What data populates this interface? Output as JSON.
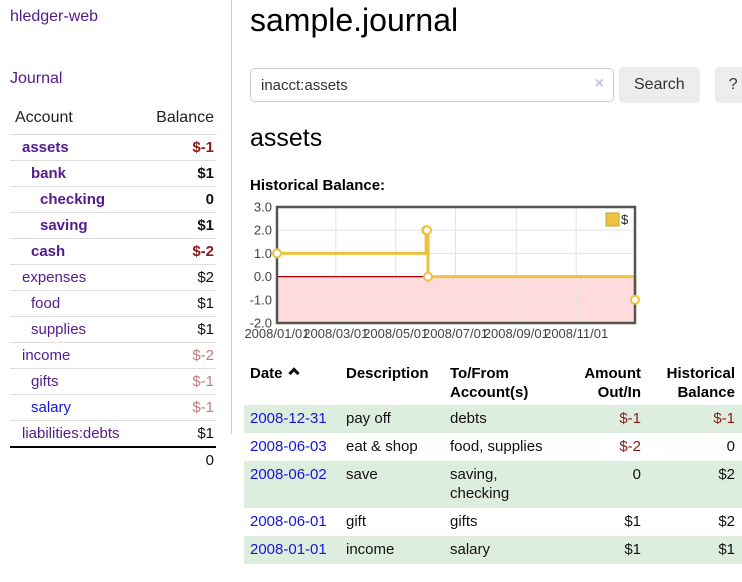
{
  "app": {
    "title": "hledger-web"
  },
  "sidebar": {
    "journal_link": "Journal",
    "accounts": {
      "headers": {
        "account": "Account",
        "balance": "Balance"
      },
      "rows": [
        {
          "name": "assets",
          "balance": "$-1",
          "level": 1,
          "in_query": true,
          "balance_tone": "negative-strong"
        },
        {
          "name": "bank",
          "balance": "$1",
          "level": 2,
          "in_query": true,
          "balance_tone": "normal"
        },
        {
          "name": "checking",
          "balance": "0",
          "level": 3,
          "in_query": true,
          "balance_tone": "normal"
        },
        {
          "name": "saving",
          "balance": "$1",
          "level": 3,
          "in_query": true,
          "balance_tone": "normal"
        },
        {
          "name": "cash",
          "balance": "$-2",
          "level": 2,
          "in_query": true,
          "balance_tone": "negative-strong"
        },
        {
          "name": "expenses",
          "balance": "$2",
          "level": 1,
          "in_query": false,
          "balance_tone": "normal"
        },
        {
          "name": "food",
          "balance": "$1",
          "level": 2,
          "in_query": false,
          "balance_tone": "normal"
        },
        {
          "name": "supplies",
          "balance": "$1",
          "level": 2,
          "in_query": false,
          "balance_tone": "normal"
        },
        {
          "name": "income",
          "balance": "$-2",
          "level": 1,
          "in_query": false,
          "balance_tone": "negative-soft"
        },
        {
          "name": "gifts",
          "balance": "$-1",
          "level": 2,
          "in_query": false,
          "balance_tone": "negative-soft"
        },
        {
          "name": "salary",
          "balance": "$-1",
          "level": 2,
          "in_query": false,
          "balance_tone": "negative-soft"
        },
        {
          "name": "liabilities:debts",
          "balance": "$1",
          "level": 1,
          "in_query": false,
          "balance_tone": "normal"
        }
      ],
      "total": "0"
    }
  },
  "main": {
    "title": "sample.journal",
    "search": {
      "value": "inacct:assets",
      "clear_icon": "×",
      "button_label": "Search",
      "help_label": "?"
    },
    "account_heading": "assets",
    "chart_label": "Historical Balance:"
  },
  "chart_data": {
    "type": "line",
    "step": true,
    "series": [
      {
        "name": "$",
        "color": "#edc240",
        "points": [
          [
            "2008-01-01",
            1
          ],
          [
            "2008-06-01",
            2
          ],
          [
            "2008-06-02",
            2
          ],
          [
            "2008-06-03",
            0
          ],
          [
            "2008-12-31",
            -1
          ]
        ]
      }
    ],
    "xrange": [
      "2008-01-01",
      "2008-12-31"
    ],
    "ylim": [
      -2,
      3
    ],
    "yticks": [
      {
        "value": 3,
        "label": "3.0"
      },
      {
        "value": 2,
        "label": "2.0"
      },
      {
        "value": 1,
        "label": "1.0"
      },
      {
        "value": 0,
        "label": "0.0"
      },
      {
        "value": -1,
        "label": "-1.0"
      },
      {
        "value": -2,
        "label": "-2.0"
      }
    ],
    "xticks": [
      {
        "date": "2008-01-01",
        "label": "2008/01/01"
      },
      {
        "date": "2008-03-01",
        "label": "2008/03/01"
      },
      {
        "date": "2008-05-01",
        "label": "2008/05/01"
      },
      {
        "date": "2008-07-01",
        "label": "2008/07/01"
      },
      {
        "date": "2008-09-01",
        "label": "2008/09/01"
      },
      {
        "date": "2008-11-01",
        "label": "2008/11/01"
      }
    ],
    "legend": {
      "label": "$",
      "position": "top-right"
    },
    "grid": true,
    "negative_fill": "#ffdbdb",
    "zero_line_color": "#a80000"
  },
  "register": {
    "headers": {
      "date": "Date",
      "description": "Description",
      "accounts": "To/From Account(s)",
      "amount": "Amount Out/In",
      "balance": "Historical Balance"
    },
    "rows": [
      {
        "date": "2008-12-31",
        "description": "pay off",
        "accounts": "debts",
        "amount": "$-1",
        "balance": "$-1"
      },
      {
        "date": "2008-06-03",
        "description": "eat & shop",
        "accounts": "food, supplies",
        "amount": "$-2",
        "balance": "0"
      },
      {
        "date": "2008-06-02",
        "description": "save",
        "accounts": "saving, checking",
        "amount": "0",
        "balance": "$2"
      },
      {
        "date": "2008-06-01",
        "description": "gift",
        "accounts": "gifts",
        "amount": "$1",
        "balance": "$2"
      },
      {
        "date": "2008-01-01",
        "description": "income",
        "accounts": "salary",
        "amount": "$1",
        "balance": "$1"
      }
    ]
  }
}
